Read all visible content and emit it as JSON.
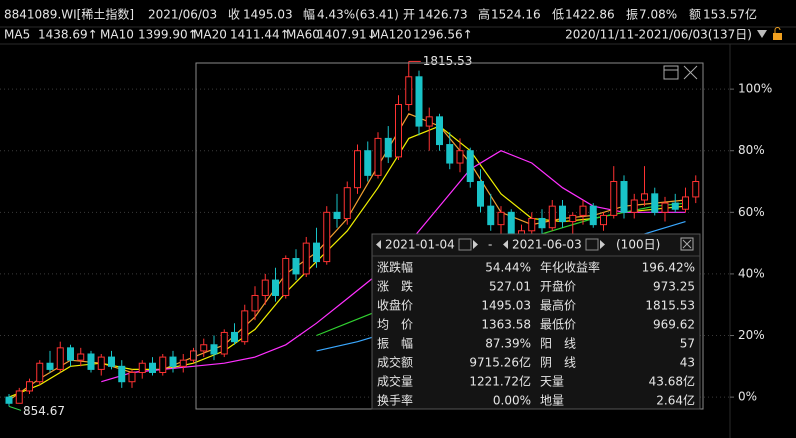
{
  "header": {
    "items": [
      {
        "text": "8841089.WI[稀土指数]",
        "color": "#e6e6e6"
      },
      {
        "text": "2021/06/03",
        "color": "#e6e6e6"
      },
      {
        "text": "收",
        "color": "#e6e6e6"
      },
      {
        "text": "1495.03",
        "color": "#ff3c3c"
      },
      {
        "text": "幅",
        "color": "#e6e6e6"
      },
      {
        "text": "4.43%(63.41)",
        "color": "#ff3c3c"
      },
      {
        "text": "开",
        "color": "#e6e6e6"
      },
      {
        "text": "1426.73",
        "color": "#2fd24b"
      },
      {
        "text": "高",
        "color": "#e6e6e6"
      },
      {
        "text": "1524.16",
        "color": "#ff3c3c"
      },
      {
        "text": "低",
        "color": "#e6e6e6"
      },
      {
        "text": "1422.86",
        "color": "#2fd24b"
      },
      {
        "text": "振",
        "color": "#e6e6e6"
      },
      {
        "text": "7.08%",
        "color": "#e6e6e6"
      },
      {
        "text": "额",
        "color": "#e6e6e6"
      },
      {
        "text": "153.57亿",
        "color": "#e6e6e6"
      }
    ]
  },
  "chart_data": {
    "type": "candlestick",
    "range": "2020/11/11-2021/06/03(137日)",
    "ylim": [
      -11,
      114
    ],
    "yticks": [
      {
        "value": 0,
        "label": "0%"
      },
      {
        "value": 20,
        "label": "20%"
      },
      {
        "value": 40,
        "label": "40%"
      },
      {
        "value": 60,
        "label": "60%"
      },
      {
        "value": 80,
        "label": "80%"
      },
      {
        "value": 100,
        "label": "100%"
      }
    ],
    "grid": true,
    "up_color": "#ff3232",
    "down_color": "#19c3c8",
    "open": [
      0,
      -2,
      2,
      5,
      11,
      9,
      16,
      12,
      14,
      9,
      13,
      10,
      5,
      8,
      11,
      8,
      13,
      10,
      12,
      15,
      17,
      14,
      21,
      18,
      28,
      33,
      38,
      33,
      45,
      40,
      50,
      44,
      60,
      58,
      68,
      80,
      72,
      84,
      78,
      95,
      104,
      88,
      91,
      82,
      76,
      80,
      70,
      62,
      56,
      60,
      50,
      54,
      58,
      55,
      62,
      57,
      59,
      62,
      56,
      59,
      70,
      60,
      64,
      66,
      60,
      63,
      61,
      65
    ],
    "high": [
      1,
      3,
      6,
      12,
      15,
      18,
      17,
      16,
      15,
      14,
      15,
      12,
      9,
      12,
      13,
      14,
      15,
      14,
      16,
      19,
      20,
      22,
      24,
      30,
      36,
      40,
      42,
      46,
      48,
      52,
      55,
      62,
      66,
      70,
      82,
      83,
      86,
      88,
      98,
      109,
      106,
      94,
      92,
      86,
      84,
      81,
      74,
      66,
      62,
      61,
      56,
      60,
      61,
      64,
      64,
      60,
      64,
      63,
      60,
      75,
      72,
      66,
      75,
      68,
      65,
      66,
      68,
      72
    ],
    "low": [
      -3,
      -2,
      1,
      4,
      8,
      8,
      10,
      10,
      8,
      7,
      9,
      3,
      3,
      6,
      7,
      7,
      8,
      8,
      11,
      13,
      12,
      13,
      17,
      17,
      25,
      30,
      31,
      32,
      38,
      39,
      42,
      43,
      55,
      56,
      66,
      70,
      71,
      76,
      77,
      93,
      85,
      80,
      80,
      74,
      73,
      68,
      60,
      54,
      53,
      48,
      46,
      52,
      52,
      54,
      55,
      52,
      56,
      55,
      54,
      58,
      58,
      58,
      62,
      59,
      57,
      60,
      60,
      63
    ],
    "close": [
      -2,
      2,
      5,
      11,
      9,
      16,
      12,
      14,
      9,
      13,
      10,
      5,
      8,
      11,
      8,
      13,
      10,
      12,
      15,
      17,
      14,
      21,
      18,
      28,
      33,
      38,
      33,
      45,
      40,
      50,
      44,
      60,
      58,
      68,
      80,
      72,
      84,
      78,
      95,
      104,
      88,
      91,
      82,
      76,
      80,
      70,
      62,
      56,
      60,
      50,
      54,
      58,
      55,
      62,
      57,
      59,
      62,
      56,
      59,
      70,
      60,
      64,
      66,
      60,
      63,
      61,
      65,
      70
    ],
    "series": [
      {
        "name": "MA5",
        "legend_value": "1438.69↑",
        "color": "#f0a030",
        "x": [
          0,
          3,
          6,
          9,
          12,
          15,
          18,
          21,
          24,
          27,
          30,
          33,
          36,
          39,
          42,
          45,
          48,
          51,
          54,
          57,
          60,
          63,
          66
        ],
        "values": [
          -1,
          6,
          12,
          11,
          8,
          9,
          13,
          17,
          26,
          40,
          47,
          58,
          75,
          92,
          88,
          76,
          60,
          56,
          58,
          59,
          62,
          63,
          64
        ]
      },
      {
        "name": "MA10",
        "legend_value": "1399.90↑",
        "color": "#f0f000",
        "x": [
          0,
          3,
          6,
          9,
          12,
          15,
          18,
          21,
          24,
          27,
          30,
          33,
          36,
          39,
          42,
          45,
          48,
          51,
          54,
          57,
          60,
          63,
          66
        ],
        "values": [
          0,
          4,
          10,
          11,
          9,
          9,
          11,
          15,
          22,
          34,
          44,
          54,
          68,
          84,
          88,
          80,
          66,
          58,
          57,
          58,
          60,
          61,
          62
        ]
      },
      {
        "name": "MA20",
        "legend_value": "1411.44↑",
        "color": "#ff30ff",
        "x": [
          9,
          12,
          15,
          18,
          21,
          24,
          27,
          30,
          33,
          36,
          39,
          42,
          45,
          48,
          51,
          54,
          57,
          60,
          63,
          66
        ],
        "values": [
          5,
          8,
          9,
          10,
          11,
          13,
          17,
          24,
          32,
          40,
          50,
          62,
          74,
          80,
          76,
          68,
          62,
          60,
          60,
          60
        ]
      },
      {
        "name": "MA60",
        "legend_value": "1407.91↓",
        "color": "#30d030",
        "x": [
          30,
          33,
          36,
          39,
          42,
          45,
          48,
          51,
          54,
          57,
          60,
          63,
          66
        ],
        "values": [
          20,
          24,
          28,
          33,
          38,
          44,
          48,
          52,
          55,
          58,
          60,
          62,
          63
        ]
      },
      {
        "name": "MA120",
        "legend_value": "1296.56↑",
        "color": "#3aa8ff",
        "x": [
          30,
          34,
          38,
          42,
          46,
          50,
          54,
          58,
          62,
          66
        ],
        "values": [
          15,
          18,
          22,
          26,
          31,
          36,
          42,
          48,
          53,
          57
        ]
      }
    ],
    "annotations": [
      {
        "text": "1815.53"
      },
      {
        "text": "854.67"
      }
    ]
  },
  "panel": {
    "start": "2021-01-04",
    "sep": "-",
    "end": "2021-06-03",
    "days": "(100日)",
    "rows": [
      [
        "涨跌幅",
        "54.44%",
        "年化收益率",
        "196.42%"
      ],
      [
        "涨　跌",
        "527.01",
        "开盘价",
        "973.25"
      ],
      [
        "收盘价",
        "1495.03",
        "最高价",
        "1815.53"
      ],
      [
        "均　价",
        "1363.58",
        "最低价",
        "969.62"
      ],
      [
        "振　幅",
        "87.39%",
        "阳　线",
        "57"
      ],
      [
        "成交额",
        "9715.26亿",
        "阴　线",
        "43"
      ],
      [
        "成交量",
        "1221.72亿",
        "天量",
        "43.68亿"
      ],
      [
        "换手率",
        "0.00%",
        "地量",
        "2.64亿"
      ]
    ],
    "value_colors": [
      [
        "#ff3c3c",
        "#ff3c3c"
      ],
      [
        "#ff3c3c",
        "#ff3c3c"
      ],
      [
        "#ff3c3c",
        "#ff3c3c"
      ],
      [
        "#ff3c3c",
        "#ff3c3c"
      ],
      [
        "#ff3c3c",
        "#ff3c3c"
      ],
      [
        "#e6e6e6",
        "#2fd24b"
      ],
      [
        "#e6e6e6",
        "#e6e6e6"
      ],
      [
        "#e6e6e6",
        "#e6e6e6"
      ]
    ]
  }
}
